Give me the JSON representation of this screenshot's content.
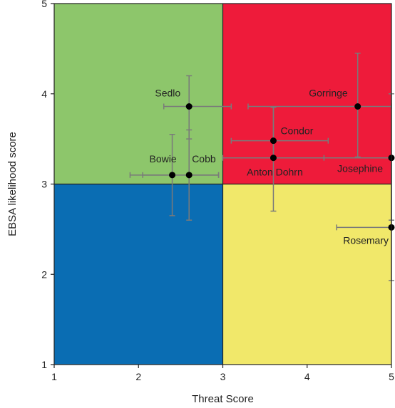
{
  "chart_data": {
    "type": "scatter",
    "title": "",
    "xlabel": "Threat Score",
    "ylabel": "EBSA likelihood score",
    "xlim": [
      1,
      5
    ],
    "ylim": [
      1,
      5
    ],
    "xticks": [
      "1",
      "2",
      "3",
      "4",
      "5"
    ],
    "yticks": [
      "1",
      "2",
      "3",
      "4",
      "5"
    ],
    "grid": false,
    "quadrants": [
      {
        "x": [
          1,
          3
        ],
        "y": [
          3,
          5
        ],
        "color": "#8dc66b"
      },
      {
        "x": [
          3,
          5
        ],
        "y": [
          3,
          5
        ],
        "color": "#ee1b3a"
      },
      {
        "x": [
          1,
          3
        ],
        "y": [
          1,
          3
        ],
        "color": "#0a6db3"
      },
      {
        "x": [
          3,
          5
        ],
        "y": [
          1,
          3
        ],
        "color": "#f1e86a"
      }
    ],
    "points": [
      {
        "label": "Sedlo",
        "x": 2.6,
        "y": 3.86,
        "xerr": [
          2.3,
          3.1
        ],
        "yerr": [
          3.5,
          4.2
        ]
      },
      {
        "label": "Gorringe",
        "x": 4.6,
        "y": 3.86,
        "xerr": [
          3.3,
          5.0
        ],
        "yerr": [
          3.3,
          4.45
        ]
      },
      {
        "label": "Condor",
        "x": 3.6,
        "y": 3.48,
        "xerr": [
          3.1,
          4.25
        ],
        "yerr": [
          3.3,
          3.85
        ]
      },
      {
        "label": "Anton Dohrn",
        "x": 3.6,
        "y": 3.29,
        "xerr": [
          3.0,
          4.2
        ],
        "yerr": [
          2.7,
          3.85
        ]
      },
      {
        "label": "Bowie",
        "x": 2.4,
        "y": 3.1,
        "xerr": [
          1.9,
          2.95
        ],
        "yerr": [
          2.65,
          3.55
        ]
      },
      {
        "label": "Cobb",
        "x": 2.6,
        "y": 3.1,
        "xerr": [
          2.05,
          2.95
        ],
        "yerr": [
          2.6,
          3.6
        ]
      },
      {
        "label": "Josephine",
        "x": 5.0,
        "y": 3.29,
        "xerr": [
          3.6,
          5.0
        ],
        "yerr": [
          2.6,
          4.0
        ]
      },
      {
        "label": "Rosemary",
        "x": 5.0,
        "y": 2.52,
        "xerr": [
          4.35,
          5.0
        ],
        "yerr": [
          1.93,
          3.3
        ]
      }
    ]
  }
}
